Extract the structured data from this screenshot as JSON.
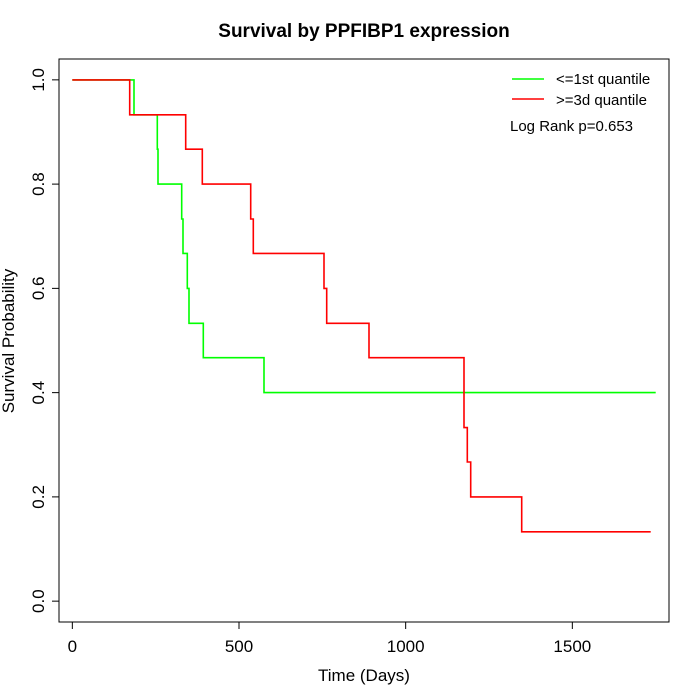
{
  "chart_data": {
    "type": "line",
    "title": "Survival by PPFIBP1 expression",
    "xlabel": "Time (Days)",
    "ylabel": "Survival Probability",
    "xlim": [
      -40,
      1790
    ],
    "ylim": [
      -0.04,
      1.04
    ],
    "x_ticks": [
      0,
      500,
      1000,
      1500
    ],
    "x_tick_labels": [
      "0",
      "500",
      "1000",
      "1500"
    ],
    "y_ticks": [
      0.0,
      0.2,
      0.4,
      0.6,
      0.8,
      1.0
    ],
    "y_tick_labels": [
      "0.0",
      "0.2",
      "0.4",
      "0.6",
      "0.8",
      "1.0"
    ],
    "grid": false,
    "legend_position": "top-right",
    "annotation": "Log Rank p=0.653",
    "series": [
      {
        "name": "<=1st quantile",
        "color": "#00ff00",
        "step_points": [
          [
            0,
            1.0
          ],
          [
            185,
            1.0
          ],
          [
            185,
            0.933
          ],
          [
            255,
            0.933
          ],
          [
            255,
            0.867
          ],
          [
            257,
            0.867
          ],
          [
            257,
            0.8
          ],
          [
            328,
            0.8
          ],
          [
            328,
            0.733
          ],
          [
            332,
            0.733
          ],
          [
            332,
            0.667
          ],
          [
            345,
            0.667
          ],
          [
            345,
            0.6
          ],
          [
            350,
            0.6
          ],
          [
            350,
            0.533
          ],
          [
            393,
            0.533
          ],
          [
            393,
            0.467
          ],
          [
            575,
            0.467
          ],
          [
            575,
            0.4
          ],
          [
            1750,
            0.4
          ]
        ]
      },
      {
        "name": ">=3d quantile",
        "color": "#ff0000",
        "step_points": [
          [
            0,
            1.0
          ],
          [
            172,
            1.0
          ],
          [
            172,
            0.933
          ],
          [
            340,
            0.933
          ],
          [
            340,
            0.867
          ],
          [
            390,
            0.867
          ],
          [
            390,
            0.8
          ],
          [
            535,
            0.8
          ],
          [
            535,
            0.733
          ],
          [
            543,
            0.733
          ],
          [
            543,
            0.667
          ],
          [
            755,
            0.667
          ],
          [
            755,
            0.6
          ],
          [
            763,
            0.6
          ],
          [
            763,
            0.533
          ],
          [
            890,
            0.533
          ],
          [
            890,
            0.467
          ],
          [
            1175,
            0.467
          ],
          [
            1175,
            0.333
          ],
          [
            1185,
            0.333
          ],
          [
            1185,
            0.267
          ],
          [
            1195,
            0.267
          ],
          [
            1195,
            0.2
          ],
          [
            1348,
            0.2
          ],
          [
            1348,
            0.133
          ],
          [
            1735,
            0.133
          ]
        ]
      }
    ]
  }
}
